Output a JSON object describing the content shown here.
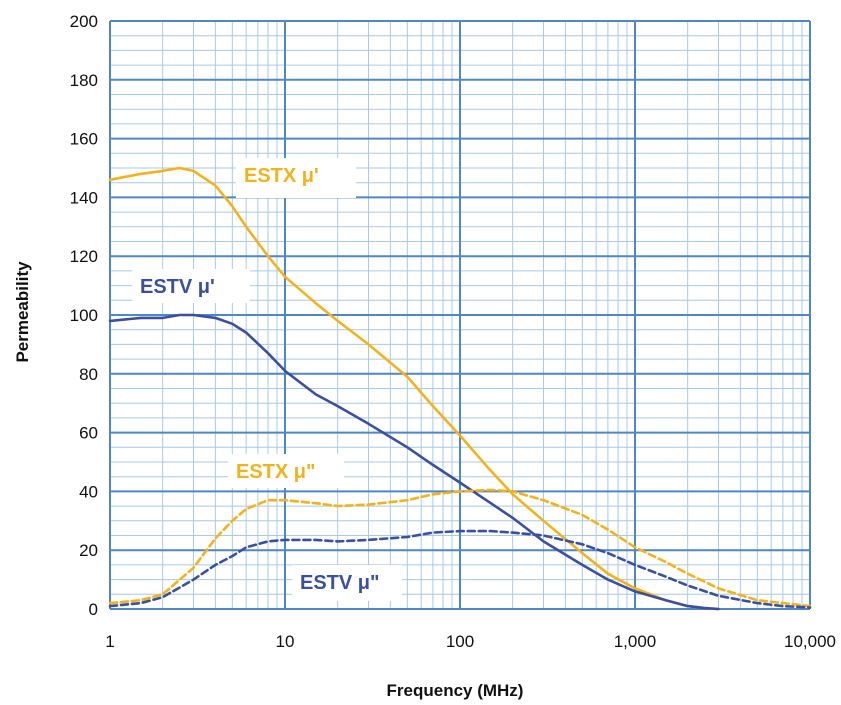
{
  "chart_data": {
    "type": "line",
    "xlabel": "Frequency (MHz)",
    "ylabel": "Permeability",
    "x_scale": "log",
    "xlim": [
      1,
      10000
    ],
    "ylim": [
      0,
      200
    ],
    "x_ticks": [
      1,
      10,
      100,
      1000,
      10000
    ],
    "x_tick_labels": [
      "1",
      "10",
      "100",
      "1,000",
      "10,000"
    ],
    "y_ticks": [
      0,
      20,
      40,
      60,
      80,
      100,
      120,
      140,
      160,
      180,
      200
    ],
    "y_tick_labels": [
      "0",
      "20",
      "40",
      "60",
      "80",
      "100",
      "120",
      "140",
      "160",
      "180",
      "200"
    ],
    "grid": true,
    "colors": {
      "estx": "#F2B21B",
      "estv": "#3A4FA0",
      "grid": "#4F86C6",
      "grid_minor": "#A9C9E6"
    },
    "series": [
      {
        "name": "ESTX μ'",
        "color": "#F2B21B",
        "style": "solid",
        "x": [
          1,
          1.5,
          2,
          2.5,
          3,
          4,
          5,
          6,
          8,
          10,
          15,
          20,
          30,
          50,
          70,
          100,
          150,
          200,
          300,
          500,
          700,
          1000,
          1500,
          2000,
          2500,
          3000
        ],
        "y": [
          146,
          148,
          149,
          150,
          149,
          144,
          137,
          130,
          120,
          113,
          104,
          98,
          90,
          79,
          69,
          59,
          47,
          39,
          30,
          19,
          12,
          7,
          3,
          1,
          0.3,
          0
        ]
      },
      {
        "name": "ESTV μ'",
        "color": "#3A4FA0",
        "style": "solid",
        "x": [
          1,
          1.5,
          2,
          2.5,
          3,
          4,
          5,
          6,
          8,
          10,
          15,
          20,
          30,
          50,
          70,
          100,
          150,
          200,
          300,
          500,
          700,
          1000,
          1500,
          2000,
          2500,
          3000
        ],
        "y": [
          98,
          99,
          99,
          100,
          100,
          99,
          97,
          94,
          87,
          81,
          73,
          69,
          63,
          55,
          49,
          43,
          36,
          31,
          23,
          15,
          10,
          6,
          3,
          1,
          0.3,
          0
        ]
      },
      {
        "name": "ESTX μ\"",
        "color": "#F2B21B",
        "style": "dashed",
        "x": [
          1,
          1.5,
          2,
          3,
          4,
          5,
          6,
          8,
          10,
          15,
          20,
          30,
          50,
          70,
          100,
          150,
          200,
          300,
          500,
          700,
          1000,
          1500,
          2000,
          3000,
          5000,
          7000,
          10000
        ],
        "y": [
          2,
          3,
          5,
          14,
          24,
          30,
          34,
          37,
          37,
          36,
          35,
          35.5,
          37,
          39,
          40,
          40.5,
          40,
          37,
          32,
          27,
          21,
          16,
          12,
          7,
          3,
          2,
          1
        ]
      },
      {
        "name": "ESTV μ\"",
        "color": "#3A4FA0",
        "style": "dashed",
        "x": [
          1,
          1.5,
          2,
          3,
          4,
          5,
          6,
          8,
          10,
          15,
          20,
          30,
          50,
          70,
          100,
          150,
          200,
          300,
          500,
          700,
          1000,
          1500,
          2000,
          3000,
          5000,
          7000,
          10000
        ],
        "y": [
          1,
          2,
          4,
          10,
          15,
          18,
          21,
          23,
          23.5,
          23.5,
          23,
          23.5,
          24.5,
          26,
          26.5,
          26.5,
          26,
          25,
          22,
          19,
          15,
          11,
          8,
          4.5,
          2,
          1,
          0.5
        ]
      }
    ],
    "annotations": [
      {
        "text": "ESTX μ'",
        "series": 0
      },
      {
        "text": "ESTV μ'",
        "series": 1
      },
      {
        "text": "ESTX μ\"",
        "series": 2
      },
      {
        "text": "ESTV μ\"",
        "series": 3
      }
    ]
  }
}
